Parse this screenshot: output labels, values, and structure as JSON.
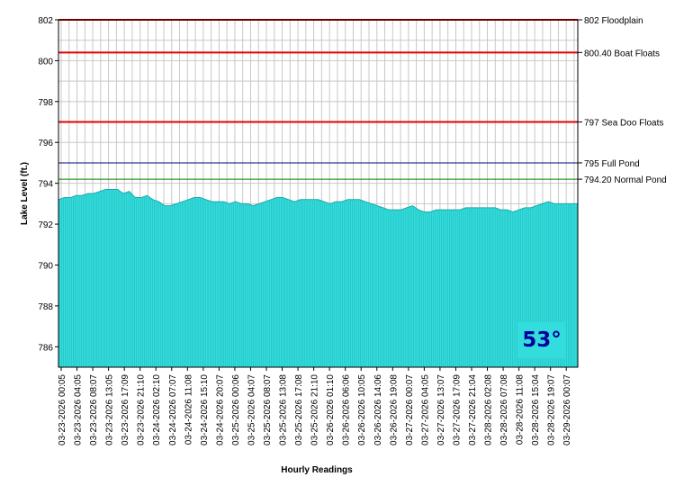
{
  "chart_data": {
    "type": "area",
    "xlabel": "Hourly Readings",
    "ylabel": "Lake Level (ft.)",
    "ylim": [
      785,
      802
    ],
    "yticks": [
      786,
      788,
      790,
      792,
      794,
      796,
      798,
      800,
      802
    ],
    "grid": true,
    "fill_color": "#33dddd",
    "x_tick_labels": [
      "03-23-2026 00:05",
      "03-23-2026 04:05",
      "03-23-2026 08:07",
      "03-23-2026 13:05",
      "03-23-2026 17:09",
      "03-23-2026 21:10",
      "03-24-2026 02:10",
      "03-24-2026 07:07",
      "03-24-2026 11:08",
      "03-24-2026 15:10",
      "03-24-2026 20:07",
      "03-25-2026 00:06",
      "03-25-2026 04:07",
      "03-25-2026 08:07",
      "03-25-2026 13:08",
      "03-25-2026 17:08",
      "03-25-2026 21:10",
      "03-26-2026 01:10",
      "03-26-2026 06:06",
      "03-26-2026 10:05",
      "03-26-2026 14:06",
      "03-26-2026 19:08",
      "03-27-2026 00:07",
      "03-27-2026 04:05",
      "03-27-2026 13:07",
      "03-27-2026 17:09",
      "03-27-2026 21:04",
      "03-28-2026 02:08",
      "03-28-2026 07:08",
      "03-28-2026 11:08",
      "03-28-2026 15:04",
      "03-28-2026 19:07",
      "03-29-2026 00:07"
    ],
    "series": [
      {
        "values": [
          793.2,
          793.3,
          793.3,
          793.4,
          793.4,
          793.5,
          793.5,
          793.6,
          793.7,
          793.7,
          793.7,
          793.5,
          793.6,
          793.3,
          793.3,
          793.4,
          793.2,
          793.1,
          792.9,
          792.9,
          793.0,
          793.1,
          793.2,
          793.3,
          793.3,
          793.2,
          793.1,
          793.1,
          793.1,
          793.0,
          793.1,
          793.0,
          793.0,
          792.9,
          793.0,
          793.1,
          793.2,
          793.3,
          793.3,
          793.2,
          793.1,
          793.2,
          793.2,
          793.2,
          793.2,
          793.1,
          793.0,
          793.1,
          793.1,
          793.2,
          793.2,
          793.2,
          793.1,
          793.0,
          792.9,
          792.8,
          792.7,
          792.7,
          792.7,
          792.8,
          792.9,
          792.7,
          792.6,
          792.6,
          792.7,
          792.7,
          792.7,
          792.7,
          792.7,
          792.8,
          792.8,
          792.8,
          792.8,
          792.8,
          792.8,
          792.7,
          792.7,
          792.6,
          792.7,
          792.8,
          792.8,
          792.9,
          793.0,
          793.1,
          793.0,
          793.0,
          793.0,
          793.0,
          793.0
        ]
      }
    ],
    "reference_lines": [
      {
        "value": 802,
        "label": "802 Floodplain",
        "color": "#e00000"
      },
      {
        "value": 800.4,
        "label": "800.40 Boat Floats",
        "color": "#e00000"
      },
      {
        "value": 797,
        "label": "797 Sea Doo Floats",
        "color": "#e00000"
      },
      {
        "value": 795,
        "label": "795 Full Pond",
        "color": "#000080"
      },
      {
        "value": 794.2,
        "label": "794.20 Normal Pond",
        "color": "#008000"
      }
    ]
  },
  "temperature_badge": "53°"
}
